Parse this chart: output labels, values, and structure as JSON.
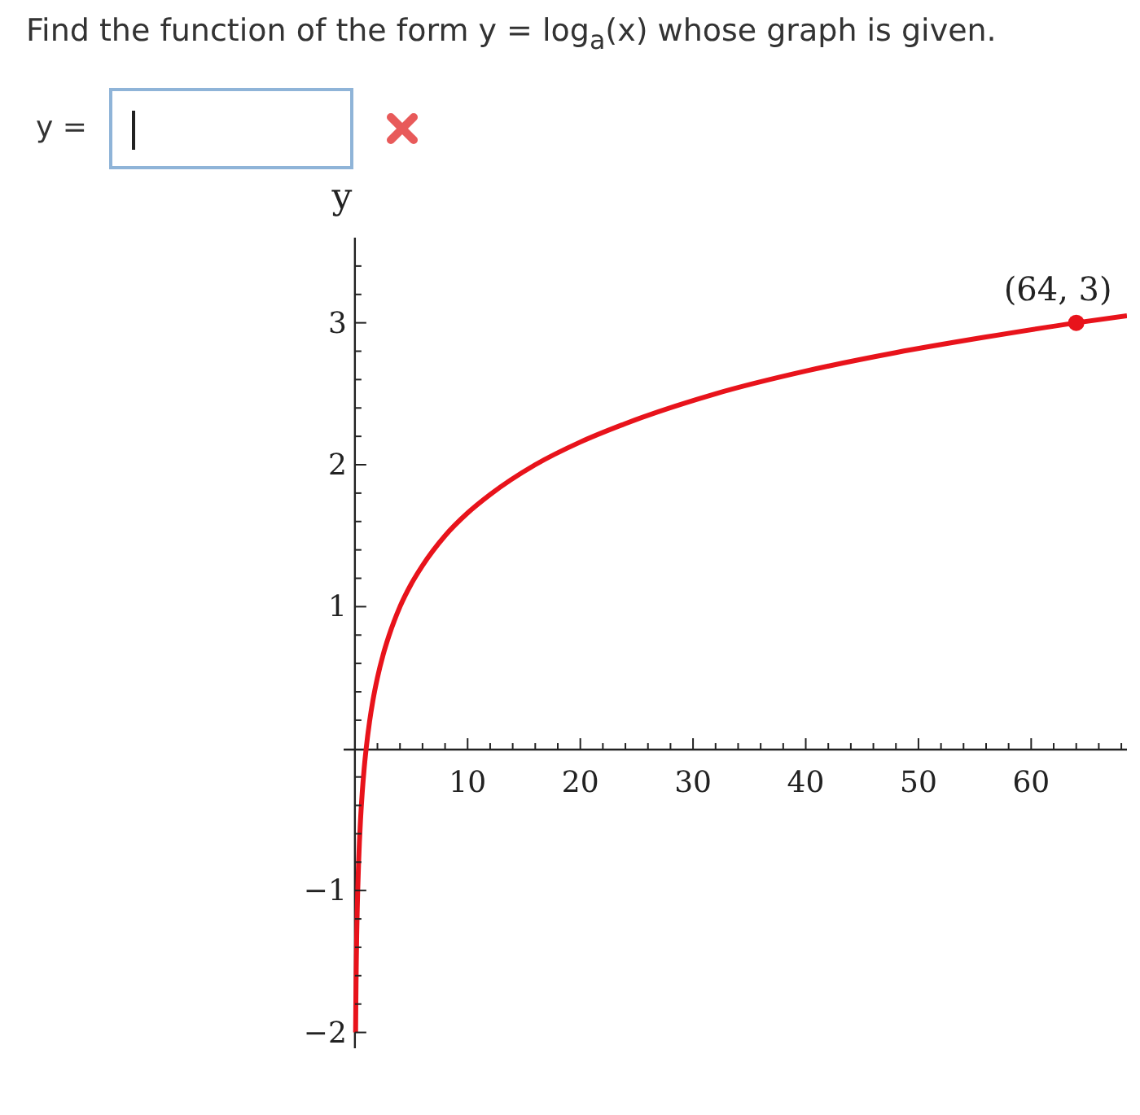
{
  "chart_data": {
    "type": "line",
    "title": "Find the function of the form y = log$_{a}$(x) whose graph is given.",
    "ylabel": "y",
    "annotations": [
      "y =",
      {
        "text": "(64, 3)",
        "x": 64,
        "y": 3
      }
    ],
    "xlim": [
      -1,
      68.5
    ],
    "ylim": [
      -2.1,
      3.6
    ],
    "xticks": [
      {
        "value": 2,
        "label": null
      },
      {
        "value": 4,
        "label": null
      },
      {
        "value": 6,
        "label": null
      },
      {
        "value": 8,
        "label": null
      },
      10,
      {
        "value": 12,
        "label": null
      },
      {
        "value": 14,
        "label": null
      },
      {
        "value": 16,
        "label": null
      },
      {
        "value": 18,
        "label": null
      },
      20,
      {
        "value": 22,
        "label": null
      },
      {
        "value": 24,
        "label": null
      },
      {
        "value": 26,
        "label": null
      },
      {
        "value": 28,
        "label": null
      },
      30,
      {
        "value": 32,
        "label": null
      },
      {
        "value": 34,
        "label": null
      },
      {
        "value": 36,
        "label": null
      },
      {
        "value": 38,
        "label": null
      },
      40,
      {
        "value": 42,
        "label": null
      },
      {
        "value": 44,
        "label": null
      },
      {
        "value": 46,
        "label": null
      },
      {
        "value": 48,
        "label": null
      },
      50,
      {
        "value": 52,
        "label": null
      },
      {
        "value": 54,
        "label": null
      },
      {
        "value": 56,
        "label": null
      },
      {
        "value": 58,
        "label": null
      },
      60,
      {
        "value": 62,
        "label": null
      },
      {
        "value": 64,
        "label": null
      },
      {
        "value": 66,
        "label": null
      },
      {
        "value": 68,
        "label": null
      }
    ],
    "yticks": [
      {
        "value": -2,
        "label": "−2"
      },
      {
        "value": -1.8,
        "label": null
      },
      {
        "value": -1.6,
        "label": null
      },
      {
        "value": -1.4,
        "label": null
      },
      {
        "value": -1.2,
        "label": null
      },
      {
        "value": -1,
        "label": "−1"
      },
      {
        "value": -0.8,
        "label": null
      },
      {
        "value": -0.6,
        "label": null
      },
      {
        "value": -0.4,
        "label": null
      },
      {
        "value": -0.2,
        "label": null
      },
      {
        "value": 0.2,
        "label": null
      },
      {
        "value": 0.4,
        "label": null
      },
      {
        "value": 0.6,
        "label": null
      },
      {
        "value": 0.8,
        "label": null
      },
      1,
      {
        "value": 1.2,
        "label": null
      },
      {
        "value": 1.4,
        "label": null
      },
      {
        "value": 1.6,
        "label": null
      },
      {
        "value": 1.8,
        "label": null
      },
      2,
      {
        "value": 2.2,
        "label": null
      },
      {
        "value": 2.4,
        "label": null
      },
      {
        "value": 2.6,
        "label": null
      },
      {
        "value": 2.8,
        "label": null
      },
      3,
      {
        "value": 3.2,
        "label": null
      },
      {
        "value": 3.4,
        "label": null
      }
    ],
    "line_style": "solid",
    "series": [
      {
        "color": "#e8131b",
        "marker": "none",
        "x": [
          0.0625,
          0.08,
          0.1,
          0.125,
          0.16,
          0.2,
          0.25,
          0.33,
          0.4,
          0.5,
          0.65,
          0.8,
          1,
          1.3,
          1.6,
          2,
          2.5,
          3,
          4,
          5,
          6,
          8,
          10,
          12,
          16,
          20,
          24,
          32,
          40,
          48,
          56,
          64,
          68.5
        ],
        "values": [
          -2,
          -1.82,
          -1.66,
          -1.5,
          -1.32,
          -1.16,
          -1,
          -0.8,
          -0.66,
          -0.5,
          -0.31,
          -0.16,
          0,
          0.19,
          0.34,
          0.5,
          0.66,
          0.79,
          1,
          1.16,
          1.29,
          1.5,
          1.66,
          1.79,
          2,
          2.16,
          2.29,
          2.5,
          2.66,
          2.79,
          2.9,
          3,
          3.05
        ]
      },
      {
        "type": "scatter",
        "color": "#e8131b",
        "marker": "circle",
        "x": [
          64
        ],
        "values": [
          3
        ]
      }
    ]
  }
}
